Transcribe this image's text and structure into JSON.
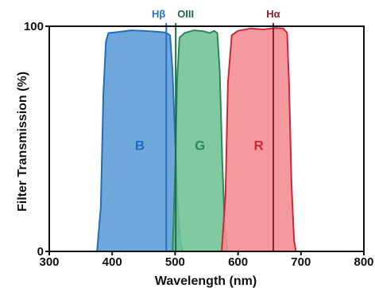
{
  "chart_data": {
    "type": "area",
    "xlabel": "Wavelength (nm)",
    "ylabel": "Filter Transmission (%)",
    "xlim": [
      300,
      800
    ],
    "ylim": [
      0,
      100
    ],
    "xticks": [
      "300",
      "400",
      "500",
      "600",
      "700",
      "800"
    ],
    "yticks": [
      "0",
      "100"
    ],
    "series": [
      {
        "name": "B",
        "color": "#1f6fc0",
        "fill": "#5b9bd5",
        "points": [
          [
            376,
            0
          ],
          [
            382,
            20
          ],
          [
            386,
            70
          ],
          [
            390,
            93
          ],
          [
            394,
            97
          ],
          [
            410,
            97.5
          ],
          [
            430,
            98.2
          ],
          [
            450,
            98
          ],
          [
            470,
            97.6
          ],
          [
            485,
            97.2
          ],
          [
            492,
            96
          ],
          [
            496,
            80
          ],
          [
            500,
            50
          ],
          [
            504,
            20
          ],
          [
            508,
            5
          ],
          [
            512,
            0
          ]
        ]
      },
      {
        "name": "G",
        "color": "#2a8a57",
        "fill": "#6fc193",
        "points": [
          [
            496,
            0
          ],
          [
            500,
            35
          ],
          [
            503,
            75
          ],
          [
            507,
            95
          ],
          [
            515,
            97
          ],
          [
            530,
            98.2
          ],
          [
            545,
            97.8
          ],
          [
            555,
            97
          ],
          [
            562,
            98
          ],
          [
            567,
            97
          ],
          [
            571,
            80
          ],
          [
            575,
            40
          ],
          [
            579,
            10
          ],
          [
            583,
            0
          ]
        ]
      },
      {
        "name": "R",
        "color": "#d0263b",
        "fill": "#f28c92",
        "points": [
          [
            574,
            0
          ],
          [
            580,
            25
          ],
          [
            584,
            75
          ],
          [
            590,
            96
          ],
          [
            600,
            98
          ],
          [
            620,
            99
          ],
          [
            640,
            98.6
          ],
          [
            660,
            99.2
          ],
          [
            672,
            99
          ],
          [
            678,
            97
          ],
          [
            681,
            75
          ],
          [
            685,
            30
          ],
          [
            689,
            5
          ],
          [
            692,
            0
          ]
        ]
      }
    ],
    "lines": [
      {
        "label": "Hβ",
        "x": 486,
        "color": "#2a6fbf"
      },
      {
        "label": "OIII",
        "x": 501,
        "color": "#1b6b45"
      },
      {
        "label": "Hα",
        "x": 656,
        "color": "#8b1f2a"
      }
    ]
  }
}
